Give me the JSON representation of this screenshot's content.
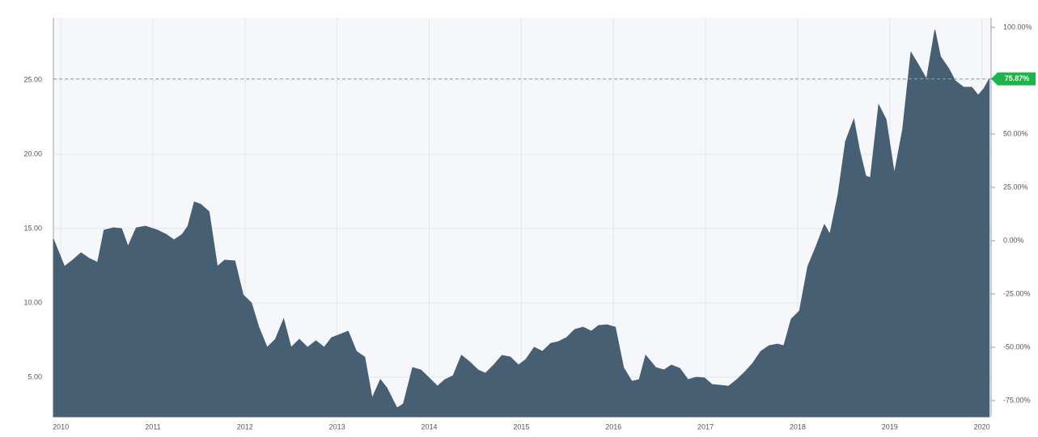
{
  "chart_data": {
    "type": "area",
    "color": "#475f73",
    "grid": true,
    "x": [
      2009.92,
      2009.97,
      2010.04,
      2010.13,
      2010.22,
      2010.31,
      2010.4,
      2010.47,
      2010.57,
      2010.66,
      2010.73,
      2010.82,
      2010.92,
      2011.05,
      2011.14,
      2011.23,
      2011.32,
      2011.38,
      2011.45,
      2011.52,
      2011.61,
      2011.7,
      2011.78,
      2011.89,
      2011.98,
      2012.07,
      2012.15,
      2012.24,
      2012.33,
      2012.42,
      2012.5,
      2012.59,
      2012.68,
      2012.77,
      2012.86,
      2012.94,
      2013.03,
      2013.12,
      2013.21,
      2013.3,
      2013.38,
      2013.47,
      2013.54,
      2013.65,
      2013.72,
      2013.82,
      2013.91,
      2014.0,
      2014.09,
      2014.17,
      2014.26,
      2014.35,
      2014.44,
      2014.53,
      2014.61,
      2014.7,
      2014.79,
      2014.88,
      2014.97,
      2015.05,
      2015.14,
      2015.23,
      2015.32,
      2015.4,
      2015.49,
      2015.58,
      2015.67,
      2015.76,
      2015.84,
      2015.93,
      2016.02,
      2016.11,
      2016.2,
      2016.28,
      2016.35,
      2016.46,
      2016.55,
      2016.63,
      2016.72,
      2016.81,
      2016.9,
      2016.99,
      2017.07,
      2017.16,
      2017.25,
      2017.34,
      2017.43,
      2017.51,
      2017.6,
      2017.69,
      2017.78,
      2017.85,
      2017.93,
      2018.02,
      2018.11,
      2018.2,
      2018.29,
      2018.35,
      2018.44,
      2018.52,
      2018.61,
      2018.67,
      2018.74,
      2018.79,
      2018.88,
      2018.96,
      2019.05,
      2019.14,
      2019.23,
      2019.31,
      2019.4,
      2019.49,
      2019.55,
      2019.64,
      2019.71,
      2019.8,
      2019.89,
      2019.96,
      2020.02,
      2020.08
    ],
    "values": [
      14.29,
      13.53,
      12.45,
      12.88,
      13.37,
      12.99,
      12.72,
      14.89,
      15.05,
      15.0,
      13.8,
      15.05,
      15.16,
      14.89,
      14.62,
      14.24,
      14.62,
      15.16,
      16.79,
      16.63,
      16.14,
      12.45,
      12.88,
      12.83,
      10.54,
      10.0,
      8.37,
      7.01,
      7.55,
      8.91,
      7.01,
      7.55,
      7.01,
      7.45,
      7.01,
      7.66,
      7.88,
      8.1,
      6.74,
      6.36,
      3.59,
      4.84,
      4.29,
      2.93,
      3.21,
      5.65,
      5.49,
      4.95,
      4.4,
      4.84,
      5.11,
      6.47,
      6.03,
      5.49,
      5.27,
      5.82,
      6.47,
      6.36,
      5.82,
      6.2,
      7.01,
      6.74,
      7.28,
      7.39,
      7.66,
      8.21,
      8.37,
      8.1,
      8.48,
      8.53,
      8.37,
      5.65,
      4.73,
      4.84,
      6.47,
      5.65,
      5.49,
      5.82,
      5.6,
      4.84,
      5.0,
      4.95,
      4.51,
      4.46,
      4.4,
      4.84,
      5.38,
      5.92,
      6.74,
      7.12,
      7.23,
      7.12,
      8.91,
      9.46,
      12.45,
      13.8,
      15.27,
      14.62,
      17.34,
      20.87,
      22.34,
      20.33,
      18.53,
      18.42,
      23.32,
      22.34,
      18.7,
      21.68,
      26.85,
      26.03,
      25.05,
      28.37,
      26.58,
      25.76,
      24.95,
      24.51,
      24.51,
      23.97,
      24.4,
      25.05
    ],
    "xlim": [
      2009.92,
      2020.1
    ],
    "xticks": [
      2010,
      2011,
      2012,
      2013,
      2014,
      2015,
      2016,
      2017,
      2018,
      2019,
      2020
    ],
    "ylim": [
      2.34,
      29.18
    ],
    "yticks": [
      {
        "value": 5,
        "label": "5.00"
      },
      {
        "value": 10,
        "label": "10.00"
      },
      {
        "value": 15,
        "label": "15.00"
      },
      {
        "value": 20,
        "label": "20.00"
      },
      {
        "value": 25,
        "label": "25.00"
      }
    ],
    "y2lim": [
      -82.6,
      104.5
    ],
    "y2ticks": [
      {
        "value": -75,
        "label": "-75.00%"
      },
      {
        "value": -50,
        "label": "-50.00%"
      },
      {
        "value": -25,
        "label": "-25.00%"
      },
      {
        "value": 0,
        "label": "0.00%"
      },
      {
        "value": 25,
        "label": "25.00%"
      },
      {
        "value": 50,
        "label": "50.00%"
      },
      {
        "value": 100,
        "label": "100.00%"
      }
    ],
    "current": {
      "value": 75.87,
      "label": "75.87%",
      "axis": "y2",
      "color": "#1db54a"
    }
  }
}
